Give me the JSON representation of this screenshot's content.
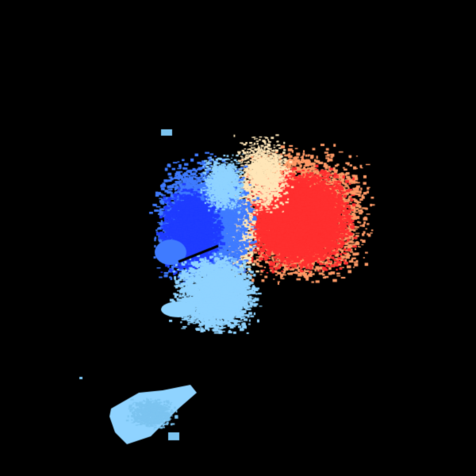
{
  "image": {
    "background_color": "#000000",
    "palette": {
      "inbound_strong": "#1f3cff",
      "inbound_medium": "#3f7bff",
      "inbound_light": "#8fd3ff",
      "near_zero": "#ffe6b8",
      "outbound_light": "#ff9a66",
      "outbound_strong": "#ff2f2f"
    }
  }
}
